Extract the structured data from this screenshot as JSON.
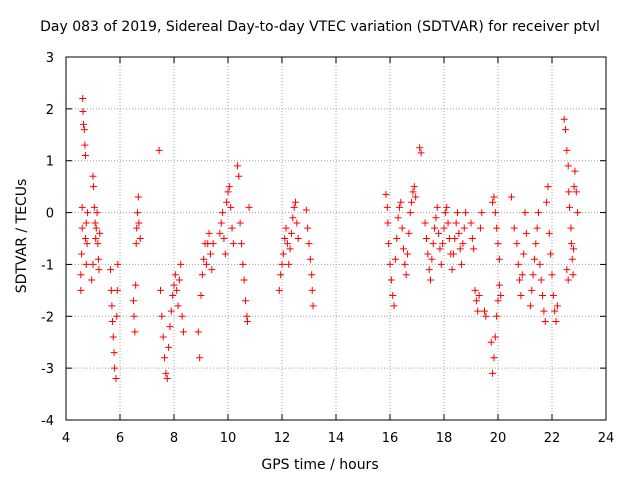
{
  "chart_data": {
    "type": "scatter",
    "title": "Day 083 of 2019, Sidereal Day-to-day VTEC variation (SDTVAR) for receiver ptvl",
    "xlabel": "GPS time / hours",
    "ylabel": "SDTVAR / TECUs",
    "xlim": [
      4,
      24
    ],
    "ylim": [
      -4,
      3
    ],
    "xticks": [
      "4",
      "6",
      "8",
      "10",
      "12",
      "14",
      "16",
      "18",
      "20",
      "22",
      "24"
    ],
    "yticks": [
      "3",
      "2",
      "1",
      "0",
      "-1",
      "-2",
      "-3",
      "-4"
    ],
    "grid": true,
    "marker": "+",
    "color": "#ff0000",
    "series": [
      {
        "name": "SDTVAR",
        "points": [
          [
            4.55,
            -1.5
          ],
          [
            4.55,
            -1.2
          ],
          [
            4.58,
            -0.8
          ],
          [
            4.6,
            -0.3
          ],
          [
            4.6,
            0.1
          ],
          [
            4.62,
            2.2
          ],
          [
            4.63,
            1.95
          ],
          [
            4.65,
            1.7
          ],
          [
            4.68,
            1.6
          ],
          [
            4.7,
            1.3
          ],
          [
            4.72,
            1.1
          ],
          [
            4.72,
            -0.5
          ],
          [
            4.75,
            -0.2
          ],
          [
            4.75,
            -1.0
          ],
          [
            4.78,
            -0.6
          ],
          [
            4.8,
            0.0
          ],
          [
            4.95,
            -1.3
          ],
          [
            5.0,
            -1.0
          ],
          [
            5.0,
            0.7
          ],
          [
            5.02,
            0.5
          ],
          [
            5.05,
            0.1
          ],
          [
            5.08,
            -0.2
          ],
          [
            5.1,
            -0.5
          ],
          [
            5.12,
            -0.3
          ],
          [
            5.15,
            0.0
          ],
          [
            5.18,
            -0.6
          ],
          [
            5.2,
            -0.9
          ],
          [
            5.22,
            -1.1
          ],
          [
            5.25,
            -0.4
          ],
          [
            5.65,
            -1.1
          ],
          [
            5.68,
            -1.5
          ],
          [
            5.7,
            -1.8
          ],
          [
            5.72,
            -2.1
          ],
          [
            5.75,
            -2.4
          ],
          [
            5.78,
            -2.7
          ],
          [
            5.8,
            -3.0
          ],
          [
            5.85,
            -3.2
          ],
          [
            5.88,
            -2.0
          ],
          [
            5.9,
            -1.5
          ],
          [
            5.92,
            -1.0
          ],
          [
            6.5,
            -1.7
          ],
          [
            6.52,
            -2.0
          ],
          [
            6.55,
            -2.3
          ],
          [
            6.58,
            -1.4
          ],
          [
            6.6,
            -0.6
          ],
          [
            6.62,
            -0.3
          ],
          [
            6.65,
            0.0
          ],
          [
            6.68,
            0.3
          ],
          [
            6.7,
            -0.2
          ],
          [
            6.75,
            -0.5
          ],
          [
            7.45,
            1.2
          ],
          [
            7.5,
            -1.5
          ],
          [
            7.55,
            -2.0
          ],
          [
            7.6,
            -2.4
          ],
          [
            7.65,
            -2.8
          ],
          [
            7.7,
            -3.1
          ],
          [
            7.75,
            -3.2
          ],
          [
            7.8,
            -2.6
          ],
          [
            7.85,
            -2.2
          ],
          [
            7.9,
            -1.9
          ],
          [
            7.95,
            -1.6
          ],
          [
            8.0,
            -1.4
          ],
          [
            8.05,
            -1.2
          ],
          [
            8.1,
            -1.5
          ],
          [
            8.15,
            -1.8
          ],
          [
            8.2,
            -1.3
          ],
          [
            8.25,
            -1.0
          ],
          [
            8.3,
            -2.0
          ],
          [
            8.35,
            -2.3
          ],
          [
            8.9,
            -2.3
          ],
          [
            8.95,
            -2.8
          ],
          [
            9.0,
            -1.6
          ],
          [
            9.05,
            -1.2
          ],
          [
            9.1,
            -0.9
          ],
          [
            9.15,
            -0.6
          ],
          [
            9.2,
            -1.0
          ],
          [
            9.25,
            -0.6
          ],
          [
            9.3,
            -0.4
          ],
          [
            9.35,
            -0.8
          ],
          [
            9.4,
            -1.1
          ],
          [
            9.45,
            -0.6
          ],
          [
            9.7,
            -0.4
          ],
          [
            9.75,
            -0.2
          ],
          [
            9.8,
            0.0
          ],
          [
            9.85,
            -0.5
          ],
          [
            9.9,
            -0.8
          ],
          [
            9.95,
            0.2
          ],
          [
            10.0,
            0.4
          ],
          [
            10.05,
            0.5
          ],
          [
            10.1,
            0.1
          ],
          [
            10.15,
            -0.3
          ],
          [
            10.2,
            -0.6
          ],
          [
            10.35,
            0.9
          ],
          [
            10.4,
            0.7
          ],
          [
            10.45,
            -0.2
          ],
          [
            10.5,
            -0.6
          ],
          [
            10.55,
            -1.0
          ],
          [
            10.6,
            -1.3
          ],
          [
            10.65,
            -1.7
          ],
          [
            10.7,
            -2.0
          ],
          [
            10.72,
            -2.1
          ],
          [
            10.78,
            0.1
          ],
          [
            11.9,
            -1.5
          ],
          [
            11.95,
            -1.2
          ],
          [
            12.0,
            -1.0
          ],
          [
            12.05,
            -0.8
          ],
          [
            12.1,
            -0.5
          ],
          [
            12.15,
            -0.3
          ],
          [
            12.2,
            -0.6
          ],
          [
            12.25,
            -1.0
          ],
          [
            12.3,
            -0.7
          ],
          [
            12.35,
            -0.4
          ],
          [
            12.4,
            -0.1
          ],
          [
            12.45,
            0.1
          ],
          [
            12.5,
            0.2
          ],
          [
            12.55,
            -0.2
          ],
          [
            12.6,
            -0.5
          ],
          [
            12.9,
            0.05
          ],
          [
            12.95,
            -0.3
          ],
          [
            13.0,
            -0.6
          ],
          [
            13.05,
            -0.9
          ],
          [
            13.1,
            -1.2
          ],
          [
            13.12,
            -1.5
          ],
          [
            13.15,
            -1.8
          ],
          [
            15.85,
            0.35
          ],
          [
            15.9,
            0.1
          ],
          [
            15.92,
            -0.2
          ],
          [
            15.95,
            -0.6
          ],
          [
            16.0,
            -1.0
          ],
          [
            16.05,
            -1.3
          ],
          [
            16.1,
            -1.6
          ],
          [
            16.15,
            -1.8
          ],
          [
            16.2,
            -0.9
          ],
          [
            16.25,
            -0.5
          ],
          [
            16.3,
            -0.1
          ],
          [
            16.35,
            0.1
          ],
          [
            16.4,
            0.2
          ],
          [
            16.45,
            -0.3
          ],
          [
            16.5,
            -0.7
          ],
          [
            16.55,
            -1.0
          ],
          [
            16.6,
            -1.2
          ],
          [
            16.65,
            -0.8
          ],
          [
            16.7,
            -0.4
          ],
          [
            16.75,
            0.0
          ],
          [
            16.8,
            0.2
          ],
          [
            16.85,
            0.4
          ],
          [
            16.9,
            0.5
          ],
          [
            16.95,
            0.3
          ],
          [
            17.1,
            1.25
          ],
          [
            17.15,
            1.15
          ],
          [
            17.3,
            -0.2
          ],
          [
            17.35,
            -0.5
          ],
          [
            17.4,
            -0.8
          ],
          [
            17.45,
            -1.1
          ],
          [
            17.5,
            -1.3
          ],
          [
            17.55,
            -0.9
          ],
          [
            17.6,
            -0.6
          ],
          [
            17.65,
            -0.3
          ],
          [
            17.7,
            -0.1
          ],
          [
            17.75,
            0.1
          ],
          [
            17.8,
            -0.4
          ],
          [
            17.85,
            -0.7
          ],
          [
            17.9,
            -1.0
          ],
          [
            17.95,
            -0.6
          ],
          [
            18.0,
            -0.3
          ],
          [
            18.05,
            0.0
          ],
          [
            18.1,
            0.1
          ],
          [
            18.15,
            -0.2
          ],
          [
            18.2,
            -0.5
          ],
          [
            18.25,
            -0.8
          ],
          [
            18.3,
            -1.1
          ],
          [
            18.35,
            -0.8
          ],
          [
            18.4,
            -0.5
          ],
          [
            18.45,
            -0.2
          ],
          [
            18.5,
            0.0
          ],
          [
            18.55,
            -0.4
          ],
          [
            18.6,
            -0.7
          ],
          [
            18.65,
            -1.0
          ],
          [
            18.7,
            -0.6
          ],
          [
            18.75,
            -0.3
          ],
          [
            18.8,
            0.0
          ],
          [
            19.0,
            -0.2
          ],
          [
            19.05,
            -0.5
          ],
          [
            19.1,
            -0.7
          ],
          [
            19.15,
            -1.5
          ],
          [
            19.2,
            -1.7
          ],
          [
            19.25,
            -1.9
          ],
          [
            19.3,
            -1.6
          ],
          [
            19.35,
            -0.3
          ],
          [
            19.4,
            0.0
          ],
          [
            19.5,
            -1.9
          ],
          [
            19.55,
            -2.0
          ],
          [
            19.75,
            -2.5
          ],
          [
            19.8,
            -3.1
          ],
          [
            19.85,
            -2.8
          ],
          [
            19.9,
            -2.4
          ],
          [
            19.95,
            -2.0
          ],
          [
            20.0,
            -1.7
          ],
          [
            20.05,
            -1.4
          ],
          [
            20.1,
            -1.6
          ],
          [
            19.8,
            0.2
          ],
          [
            19.85,
            0.3
          ],
          [
            19.9,
            0.0
          ],
          [
            19.95,
            -0.3
          ],
          [
            20.0,
            -0.6
          ],
          [
            20.05,
            -0.9
          ],
          [
            20.5,
            0.3
          ],
          [
            20.6,
            -0.3
          ],
          [
            20.7,
            -0.6
          ],
          [
            20.75,
            -1.0
          ],
          [
            20.8,
            -1.3
          ],
          [
            20.85,
            -1.6
          ],
          [
            20.9,
            -1.2
          ],
          [
            20.95,
            -0.8
          ],
          [
            21.0,
            0.0
          ],
          [
            21.05,
            -0.4
          ],
          [
            21.2,
            -1.8
          ],
          [
            21.25,
            -1.5
          ],
          [
            21.3,
            -1.2
          ],
          [
            21.35,
            -0.9
          ],
          [
            21.4,
            -0.6
          ],
          [
            21.45,
            -0.3
          ],
          [
            21.5,
            0.0
          ],
          [
            21.55,
            -1.0
          ],
          [
            21.6,
            -1.3
          ],
          [
            21.65,
            -1.6
          ],
          [
            21.7,
            -1.9
          ],
          [
            21.75,
            -2.1
          ],
          [
            21.8,
            0.2
          ],
          [
            21.85,
            0.5
          ],
          [
            21.9,
            -0.4
          ],
          [
            21.95,
            -0.8
          ],
          [
            22.0,
            -1.2
          ],
          [
            22.05,
            -1.6
          ],
          [
            22.1,
            -1.9
          ],
          [
            22.15,
            -2.1
          ],
          [
            22.2,
            -1.8
          ],
          [
            22.45,
            1.8
          ],
          [
            22.5,
            1.6
          ],
          [
            22.55,
            1.2
          ],
          [
            22.6,
            0.9
          ],
          [
            22.62,
            0.4
          ],
          [
            22.65,
            0.1
          ],
          [
            22.7,
            -0.3
          ],
          [
            22.72,
            -0.6
          ],
          [
            22.75,
            -0.9
          ],
          [
            22.78,
            -1.2
          ],
          [
            22.8,
            -0.7
          ],
          [
            22.82,
            0.5
          ],
          [
            22.85,
            0.8
          ],
          [
            22.9,
            0.4
          ],
          [
            22.95,
            0.0
          ],
          [
            22.55,
            -1.1
          ],
          [
            22.6,
            -1.3
          ]
        ]
      }
    ]
  }
}
